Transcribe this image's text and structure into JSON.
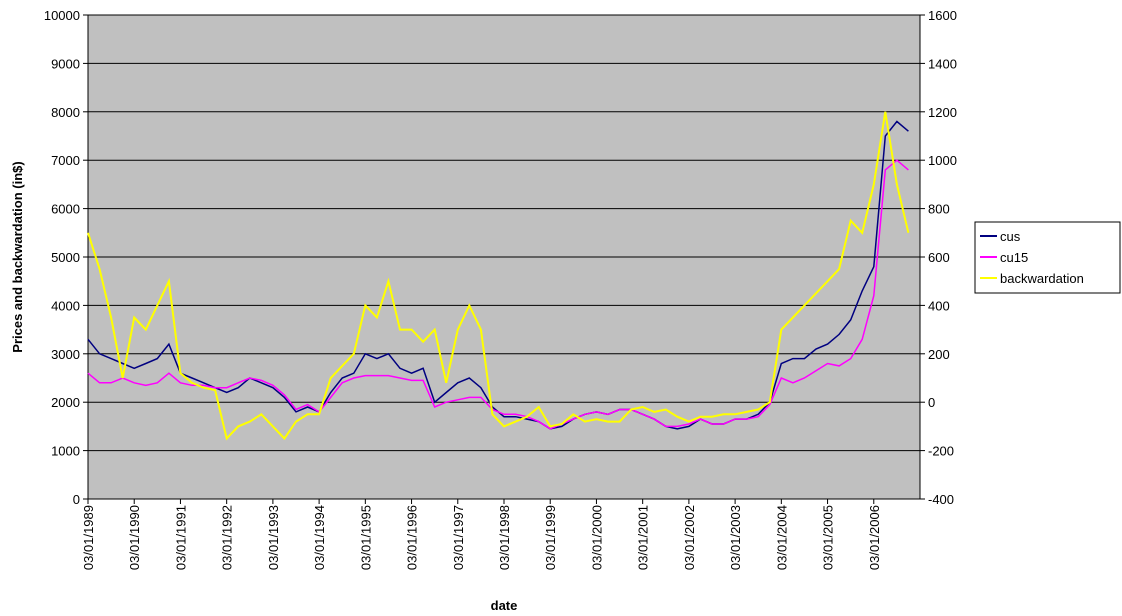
{
  "chart_data": {
    "type": "line",
    "y_label": "Prices and backwardation (in$)",
    "x_label": "date",
    "x": [
      1989.0,
      1989.25,
      1989.5,
      1989.75,
      1990.0,
      1990.25,
      1990.5,
      1990.75,
      1991.0,
      1991.25,
      1991.5,
      1991.75,
      1992.0,
      1992.25,
      1992.5,
      1992.75,
      1993.0,
      1993.25,
      1993.5,
      1993.75,
      1994.0,
      1994.25,
      1994.5,
      1994.75,
      1995.0,
      1995.25,
      1995.5,
      1995.75,
      1996.0,
      1996.25,
      1996.5,
      1996.75,
      1997.0,
      1997.25,
      1997.5,
      1997.75,
      1998.0,
      1998.25,
      1998.5,
      1998.75,
      1999.0,
      1999.25,
      1999.5,
      1999.75,
      2000.0,
      2000.25,
      2000.5,
      2000.75,
      2001.0,
      2001.25,
      2001.5,
      2001.75,
      2002.0,
      2002.25,
      2002.5,
      2002.75,
      2003.0,
      2003.25,
      2003.5,
      2003.75,
      2004.0,
      2004.25,
      2004.5,
      2004.75,
      2005.0,
      2005.25,
      2005.5,
      2005.75,
      2006.0,
      2006.25,
      2006.5,
      2006.75
    ],
    "series": [
      {
        "name": "cus",
        "color": "#000080",
        "values": [
          3300,
          3000,
          2900,
          2800,
          2700,
          2800,
          2900,
          3200,
          2600,
          2500,
          2400,
          2300,
          2200,
          2300,
          2500,
          2400,
          2300,
          2100,
          1800,
          1900,
          1800,
          2200,
          2500,
          2600,
          3000,
          2900,
          3000,
          2700,
          2600,
          2700,
          2000,
          2200,
          2400,
          2500,
          2300,
          1900,
          1700,
          1700,
          1650,
          1600,
          1450,
          1500,
          1650,
          1750,
          1800,
          1750,
          1850,
          1850,
          1750,
          1650,
          1500,
          1450,
          1500,
          1650,
          1550,
          1550,
          1650,
          1650,
          1750,
          2000,
          2800,
          2900,
          2900,
          3100,
          3200,
          3400,
          3700,
          4300,
          4800,
          7500,
          7800,
          7600
        ]
      },
      {
        "name": "cu15",
        "color": "#ff00ff",
        "values": [
          2600,
          2400,
          2400,
          2500,
          2400,
          2350,
          2400,
          2600,
          2400,
          2350,
          2350,
          2300,
          2300,
          2400,
          2500,
          2450,
          2350,
          2150,
          1850,
          1950,
          1800,
          2100,
          2400,
          2500,
          2550,
          2550,
          2550,
          2500,
          2450,
          2450,
          1900,
          2000,
          2050,
          2100,
          2100,
          1850,
          1750,
          1750,
          1700,
          1600,
          1450,
          1550,
          1650,
          1750,
          1800,
          1750,
          1850,
          1850,
          1750,
          1650,
          1500,
          1500,
          1550,
          1650,
          1550,
          1550,
          1650,
          1650,
          1700,
          1950,
          2500,
          2400,
          2500,
          2650,
          2800,
          2750,
          2900,
          3300,
          4200,
          6800,
          7000,
          6800
        ]
      },
      {
        "name": "backwardation",
        "color": "#ffff00",
        "axis": "y2",
        "values": [
          700,
          550,
          350,
          100,
          350,
          300,
          400,
          500,
          120,
          80,
          60,
          50,
          -150,
          -100,
          -80,
          -50,
          -100,
          -150,
          -80,
          -50,
          -50,
          100,
          150,
          200,
          400,
          350,
          500,
          300,
          300,
          250,
          300,
          80,
          300,
          400,
          300,
          -50,
          -100,
          -80,
          -60,
          -20,
          -100,
          -90,
          -50,
          -80,
          -70,
          -80,
          -80,
          -30,
          -20,
          -40,
          -30,
          -60,
          -80,
          -60,
          -60,
          -50,
          -50,
          -40,
          -30,
          0,
          300,
          350,
          400,
          450,
          500,
          550,
          750,
          700,
          900,
          1200,
          900,
          700
        ]
      }
    ],
    "xlim": [
      1989,
      2007
    ],
    "xticks": [
      {
        "value": 1989,
        "label": "03/01/1989"
      },
      {
        "value": 1990,
        "label": "03/01/1990"
      },
      {
        "value": 1991,
        "label": "03/01/1991"
      },
      {
        "value": 1992,
        "label": "03/01/1992"
      },
      {
        "value": 1993,
        "label": "03/01/1993"
      },
      {
        "value": 1994,
        "label": "03/01/1994"
      },
      {
        "value": 1995,
        "label": "03/01/1995"
      },
      {
        "value": 1996,
        "label": "03/01/1996"
      },
      {
        "value": 1997,
        "label": "03/01/1997"
      },
      {
        "value": 1998,
        "label": "03/01/1998"
      },
      {
        "value": 1999,
        "label": "03/01/1999"
      },
      {
        "value": 2000,
        "label": "03/01/2000"
      },
      {
        "value": 2001,
        "label": "03/01/2001"
      },
      {
        "value": 2002,
        "label": "03/01/2002"
      },
      {
        "value": 2003,
        "label": "03/01/2003"
      },
      {
        "value": 2004,
        "label": "03/01/2004"
      },
      {
        "value": 2005,
        "label": "03/01/2005"
      },
      {
        "value": 2006,
        "label": "03/01/2006"
      }
    ],
    "ylim": [
      0,
      10000
    ],
    "yticks": [
      0,
      1000,
      2000,
      3000,
      4000,
      5000,
      6000,
      7000,
      8000,
      9000,
      10000
    ],
    "y2lim": [
      -400,
      1600
    ],
    "y2ticks": [
      -400,
      -200,
      0,
      200,
      400,
      600,
      800,
      1000,
      1200,
      1400,
      1600
    ],
    "grid": true,
    "plot_background": "#c0c0c0",
    "legend": "right"
  }
}
